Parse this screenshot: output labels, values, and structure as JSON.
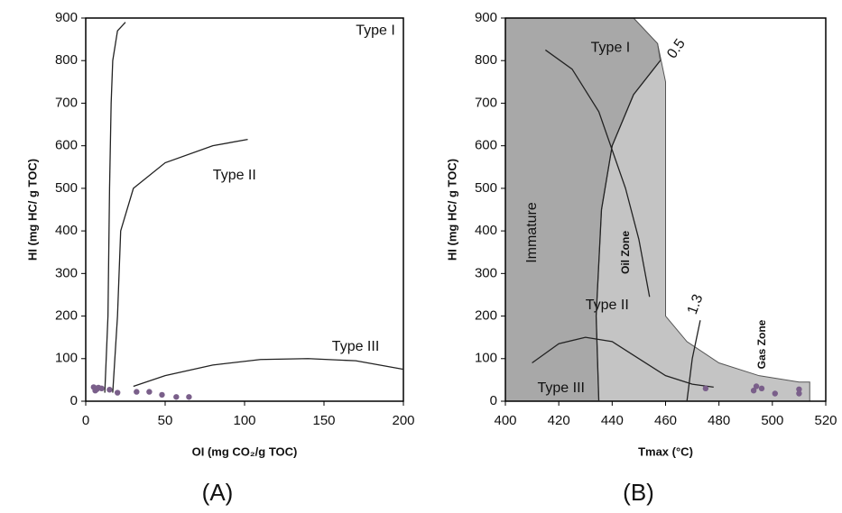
{
  "charts": [
    {
      "type": "scatter",
      "caption": "(A)",
      "x_label": "OI (mg CO₂/g TOC)",
      "y_label": "HI (mg HC/ g TOC)",
      "xlim": [
        0,
        200
      ],
      "ylim": [
        0,
        900
      ],
      "xticks": [
        0,
        50,
        100,
        150,
        200
      ],
      "yticks": [
        0,
        100,
        200,
        300,
        400,
        500,
        600,
        700,
        800,
        900
      ],
      "point_color": "#7a5f8a",
      "points": {
        "x": [
          5,
          6,
          7,
          8,
          10,
          15,
          20,
          32,
          40,
          48,
          57,
          65
        ],
        "y": [
          33,
          25,
          28,
          32,
          30,
          27,
          20,
          22,
          22,
          15,
          10,
          10
        ]
      },
      "curves": [
        {
          "label": "Type I",
          "x": [
            12,
            14,
            15,
            16,
            17,
            20,
            25
          ],
          "y": [
            20,
            200,
            500,
            700,
            800,
            870,
            890
          ]
        },
        {
          "label": "Type II",
          "x": [
            17,
            20,
            22,
            30,
            50,
            80,
            102
          ],
          "y": [
            20,
            200,
            400,
            500,
            560,
            600,
            615
          ]
        },
        {
          "label": "Type III",
          "x": [
            30,
            50,
            80,
            110,
            140,
            170,
            200
          ],
          "y": [
            35,
            60,
            85,
            98,
            100,
            95,
            75
          ]
        }
      ]
    },
    {
      "type": "scatter",
      "caption": "(B)",
      "x_label": "Tmax (°C)",
      "y_label": "HI (mg HC/ g TOC)",
      "xlim": [
        400,
        520
      ],
      "ylim": [
        0,
        900
      ],
      "xticks": [
        400,
        420,
        440,
        460,
        480,
        500,
        520
      ],
      "yticks": [
        0,
        100,
        200,
        300,
        400,
        500,
        600,
        700,
        800,
        900
      ],
      "point_color": "#7a5f8a",
      "points": {
        "x": [
          475,
          493,
          494,
          496,
          501,
          510,
          510
        ],
        "y": [
          30,
          25,
          35,
          30,
          18,
          28,
          18
        ]
      },
      "zones": [
        {
          "label": "Gas Zone",
          "color": "#c4c4c4",
          "x": [
            400,
            400,
            448,
            457,
            460,
            460,
            468,
            480,
            495,
            510,
            514,
            514
          ],
          "y": [
            0,
            900,
            900,
            840,
            750,
            200,
            140,
            90,
            60,
            45,
            45,
            0
          ]
        },
        {
          "label": "Immature",
          "color": "#a8a8a8",
          "x": [
            400,
            400,
            448,
            457,
            458,
            448,
            440,
            436,
            434,
            435
          ],
          "y": [
            0,
            900,
            900,
            840,
            800,
            720,
            600,
            450,
            200,
            0
          ]
        }
      ],
      "zone_note": "Oil Zone",
      "curves": [
        {
          "label": "Type I",
          "x": [
            415,
            425,
            435,
            445,
            450,
            454
          ],
          "y": [
            825,
            780,
            680,
            500,
            380,
            245
          ]
        },
        {
          "label": "Type II",
          "x": [
            410,
            420,
            430,
            440,
            450,
            460,
            470,
            478
          ],
          "y": [
            90,
            135,
            150,
            140,
            100,
            60,
            40,
            33
          ]
        },
        {
          "label": "0.5",
          "x": [
            435,
            434,
            436,
            440,
            448,
            458
          ],
          "y": [
            0,
            200,
            450,
            600,
            720,
            800
          ]
        },
        {
          "label": "1.3",
          "x": [
            468,
            470,
            473
          ],
          "y": [
            0,
            100,
            190
          ]
        }
      ],
      "extra_label": "Type III"
    }
  ]
}
